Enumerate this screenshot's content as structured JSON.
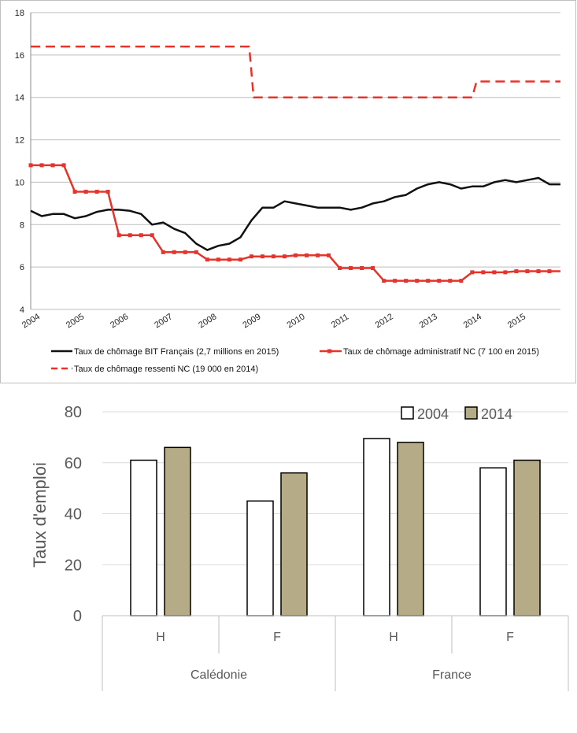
{
  "chart_data": [
    {
      "type": "line",
      "title": "",
      "xlabel": "",
      "ylabel": "",
      "ylim": [
        4,
        18
      ],
      "xlim": [
        2004,
        2016
      ],
      "x_ticks": [
        "2004",
        "2005",
        "2006",
        "2007",
        "2008",
        "2009",
        "2010",
        "2011",
        "2012",
        "2013",
        "2014",
        "2015"
      ],
      "y_ticks": [
        "4",
        "6",
        "8",
        "10",
        "12",
        "14",
        "16",
        "18"
      ],
      "grid": true,
      "legend_placement": "bottom",
      "series": [
        {
          "name": "Taux de chômage BIT Français (2,7 millions en 2015)",
          "color": "#111111",
          "style": "solid",
          "x": [
            2004,
            2004.25,
            2004.5,
            2004.75,
            2005,
            2005.25,
            2005.5,
            2005.75,
            2006,
            2006.25,
            2006.5,
            2006.75,
            2007,
            2007.25,
            2007.5,
            2007.75,
            2008,
            2008.25,
            2008.5,
            2008.75,
            2009,
            2009.25,
            2009.5,
            2009.75,
            2010,
            2010.25,
            2010.5,
            2010.75,
            2011,
            2011.25,
            2011.5,
            2011.75,
            2012,
            2012.25,
            2012.5,
            2012.75,
            2013,
            2013.25,
            2013.5,
            2013.75,
            2014,
            2014.25,
            2014.5,
            2014.75,
            2015,
            2015.25,
            2015.5,
            2015.75,
            2016
          ],
          "y": [
            8.65,
            8.4,
            8.5,
            8.5,
            8.3,
            8.4,
            8.6,
            8.7,
            8.7,
            8.65,
            8.5,
            8.0,
            8.1,
            7.8,
            7.6,
            7.1,
            6.8,
            7.0,
            7.1,
            7.4,
            8.2,
            8.8,
            8.8,
            9.1,
            9.0,
            8.9,
            8.8,
            8.8,
            8.8,
            8.7,
            8.8,
            9.0,
            9.1,
            9.3,
            9.4,
            9.7,
            9.9,
            10.0,
            9.9,
            9.7,
            9.8,
            9.8,
            10.0,
            10.1,
            10.0,
            10.1,
            10.2,
            9.9,
            9.9
          ]
        },
        {
          "name": "Taux de chômage administratif NC (7 100 en 2015)",
          "color": "#e8332a",
          "style": "solid-markers",
          "x": [
            2004,
            2004.25,
            2004.5,
            2004.75,
            2005,
            2005.25,
            2005.5,
            2005.75,
            2006,
            2006.25,
            2006.5,
            2006.75,
            2007,
            2007.25,
            2007.5,
            2007.75,
            2008,
            2008.25,
            2008.5,
            2008.75,
            2009,
            2009.25,
            2009.5,
            2009.75,
            2010,
            2010.25,
            2010.5,
            2010.75,
            2011,
            2011.25,
            2011.5,
            2011.75,
            2012,
            2012.25,
            2012.5,
            2012.75,
            2013,
            2013.25,
            2013.5,
            2013.75,
            2014,
            2014.25,
            2014.5,
            2014.75,
            2015,
            2015.25,
            2015.5,
            2015.75,
            2016
          ],
          "y": [
            10.8,
            10.8,
            10.8,
            10.8,
            9.55,
            9.55,
            9.55,
            9.55,
            7.5,
            7.5,
            7.5,
            7.5,
            6.7,
            6.7,
            6.7,
            6.7,
            6.35,
            6.35,
            6.35,
            6.35,
            6.5,
            6.5,
            6.5,
            6.5,
            6.55,
            6.55,
            6.55,
            6.55,
            5.95,
            5.95,
            5.95,
            5.95,
            5.35,
            5.35,
            5.35,
            5.35,
            5.35,
            5.35,
            5.35,
            5.35,
            5.75,
            5.75,
            5.75,
            5.75,
            5.8,
            5.8,
            5.8,
            5.8,
            5.8
          ]
        },
        {
          "name": "Taux de chômage ressenti NC (19 000 en 2014)",
          "color": "#e8332a",
          "style": "dashed",
          "x": [
            2004,
            2008.95,
            2009.05,
            2014,
            2014.1,
            2016
          ],
          "y": [
            16.4,
            16.4,
            14.0,
            14.0,
            14.75,
            14.75
          ]
        }
      ]
    },
    {
      "type": "bar",
      "title": "",
      "xlabel": "",
      "ylabel": "Taux d'emploi",
      "ylim": [
        0,
        80
      ],
      "y_ticks": [
        "0",
        "20",
        "40",
        "60",
        "80"
      ],
      "grid": true,
      "legend_placement": "top-right",
      "groups": [
        "Calédonie",
        "France"
      ],
      "categories": [
        "H",
        "F",
        "H",
        "F"
      ],
      "series": [
        {
          "name": "2004",
          "color": "#ffffff",
          "values": [
            61,
            45,
            69.5,
            58
          ]
        },
        {
          "name": "2014",
          "color": "#b5ab87",
          "values": [
            66,
            56,
            68,
            61
          ]
        }
      ]
    }
  ]
}
